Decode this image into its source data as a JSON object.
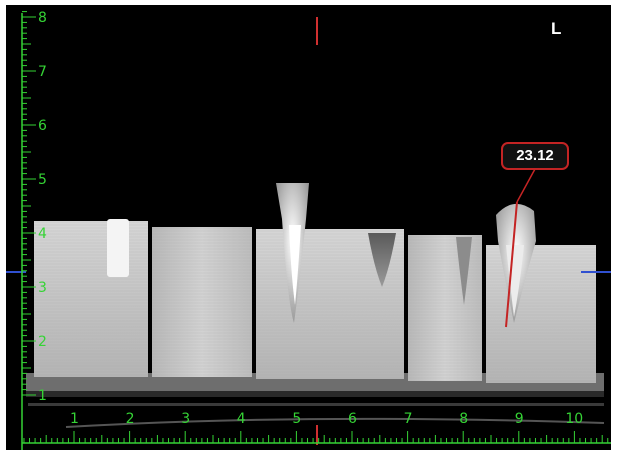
{
  "viewer": {
    "orientation_label": "L",
    "measurement": {
      "value": "23.12",
      "color": "#c42424"
    },
    "vertical_ruler": {
      "labels": [
        "1",
        "2",
        "3",
        "4",
        "5",
        "6",
        "7",
        "8"
      ],
      "color": "#35d335"
    },
    "horizontal_ruler": {
      "labels": [
        "1",
        "2",
        "3",
        "4",
        "5",
        "6",
        "7",
        "8",
        "9",
        "10"
      ],
      "color": "#35d335"
    },
    "crosshair": {
      "vertical_color": "#d03030",
      "horizontal_color": "#3050d0"
    }
  }
}
